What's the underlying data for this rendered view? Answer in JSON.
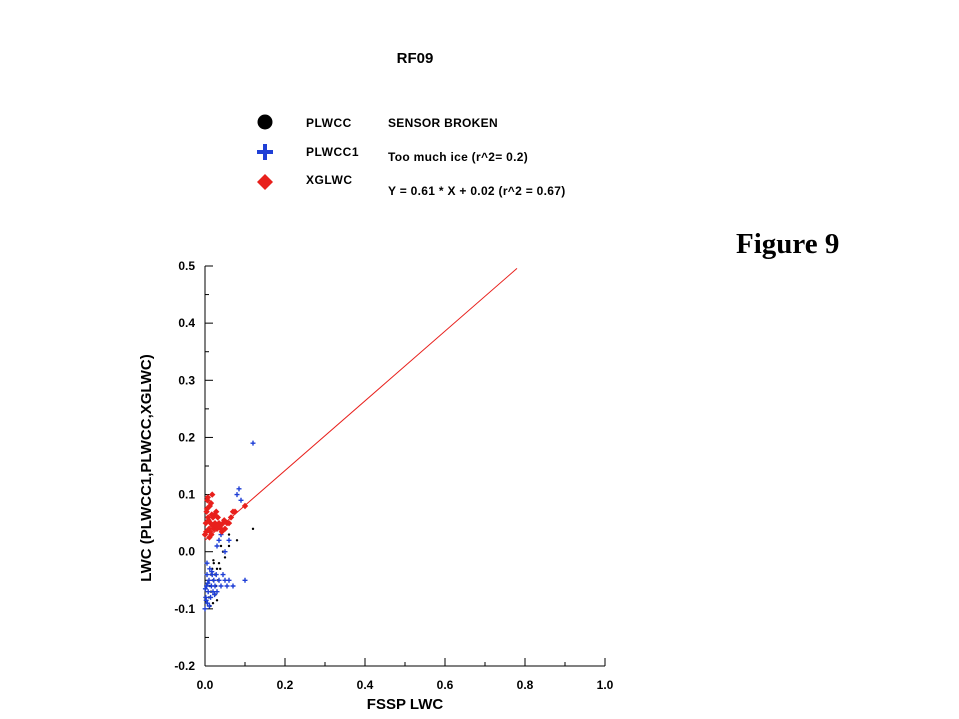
{
  "title": "RF09",
  "figure_label": "Figure 9",
  "legend": [
    {
      "name": "PLWCC",
      "note": "SENSOR BROKEN",
      "symbol": "circle",
      "color": "#000000"
    },
    {
      "name": "PLWCC1",
      "note": "Too much ice  (r^2= 0.2)",
      "symbol": "plus",
      "color": "#1f3fd6"
    },
    {
      "name": "XGLWC",
      "note": "Y = 0.61 * X + 0.02  (r^2 = 0.67)",
      "symbol": "diamond",
      "color": "#e8201c"
    }
  ],
  "chart_data": {
    "type": "scatter",
    "title": "RF09",
    "xlabel": "FSSP LWC",
    "ylabel": "LWC (PLWCC1,PLWCC,XGLWC)",
    "xlim": [
      0.0,
      1.0
    ],
    "ylim": [
      -0.2,
      0.5
    ],
    "xticks": [
      "0.0",
      "0.2",
      "0.4",
      "0.6",
      "0.8",
      "1.0"
    ],
    "yticks": [
      "-0.2",
      "-0.1",
      "0.0",
      "0.1",
      "0.2",
      "0.3",
      "0.4",
      "0.5"
    ],
    "grid": false,
    "legend_position": "top",
    "series": [
      {
        "name": "PLWCC",
        "marker": "circle",
        "color": "#000000",
        "points": [
          [
            0.01,
            -0.08
          ],
          [
            0.012,
            -0.06
          ],
          [
            0.015,
            -0.04
          ],
          [
            0.018,
            -0.03
          ],
          [
            0.02,
            -0.05
          ],
          [
            0.022,
            -0.02
          ],
          [
            0.025,
            -0.04
          ],
          [
            0.028,
            -0.06
          ],
          [
            0.03,
            -0.03
          ],
          [
            0.02,
            -0.09
          ],
          [
            0.015,
            -0.07
          ],
          [
            0.032,
            -0.05
          ],
          [
            0.035,
            -0.02
          ],
          [
            0.04,
            0.01
          ],
          [
            0.045,
            0.0
          ],
          [
            0.05,
            -0.01
          ],
          [
            0.06,
            0.01
          ],
          [
            0.08,
            0.02
          ],
          [
            0.06,
            0.03
          ],
          [
            0.12,
            0.04
          ],
          [
            0.013,
            -0.095
          ],
          [
            0.026,
            -0.075
          ],
          [
            0.021,
            -0.015
          ],
          [
            0.038,
            -0.03
          ],
          [
            0.03,
            -0.085
          ]
        ]
      },
      {
        "name": "PLWCC1",
        "marker": "plus",
        "color": "#1f3fd6",
        "points": [
          [
            0.0,
            -0.1
          ],
          [
            0.002,
            -0.08
          ],
          [
            0.004,
            -0.06
          ],
          [
            0.005,
            -0.04
          ],
          [
            0.006,
            -0.09
          ],
          [
            0.008,
            -0.07
          ],
          [
            0.01,
            -0.05
          ],
          [
            0.012,
            -0.03
          ],
          [
            0.014,
            -0.08
          ],
          [
            0.016,
            -0.06
          ],
          [
            0.018,
            -0.04
          ],
          [
            0.02,
            -0.07
          ],
          [
            0.022,
            -0.05
          ],
          [
            0.025,
            -0.06
          ],
          [
            0.028,
            -0.04
          ],
          [
            0.03,
            -0.07
          ],
          [
            0.035,
            -0.05
          ],
          [
            0.04,
            -0.06
          ],
          [
            0.045,
            -0.04
          ],
          [
            0.05,
            -0.05
          ],
          [
            0.055,
            -0.06
          ],
          [
            0.06,
            -0.05
          ],
          [
            0.07,
            -0.06
          ],
          [
            0.1,
            -0.05
          ],
          [
            0.005,
            -0.02
          ],
          [
            0.003,
            -0.085
          ],
          [
            0.007,
            -0.055
          ],
          [
            0.011,
            -0.095
          ],
          [
            0.017,
            -0.035
          ],
          [
            0.024,
            -0.075
          ],
          [
            0.03,
            0.01
          ],
          [
            0.035,
            0.02
          ],
          [
            0.04,
            0.03
          ],
          [
            0.05,
            0.0
          ],
          [
            0.06,
            0.02
          ],
          [
            0.08,
            0.1
          ],
          [
            0.085,
            0.11
          ],
          [
            0.09,
            0.09
          ],
          [
            0.12,
            0.19
          ],
          [
            0.001,
            -0.065
          ]
        ]
      },
      {
        "name": "XGLWC",
        "marker": "diamond",
        "color": "#e8201c",
        "points": [
          [
            0.0,
            0.03
          ],
          [
            0.002,
            0.05
          ],
          [
            0.004,
            0.07
          ],
          [
            0.006,
            0.09
          ],
          [
            0.008,
            0.06
          ],
          [
            0.01,
            0.04
          ],
          [
            0.012,
            0.08
          ],
          [
            0.014,
            0.05
          ],
          [
            0.016,
            0.03
          ],
          [
            0.018,
            0.1
          ],
          [
            0.02,
            0.06
          ],
          [
            0.022,
            0.04
          ],
          [
            0.025,
            0.05
          ],
          [
            0.028,
            0.07
          ],
          [
            0.03,
            0.04
          ],
          [
            0.035,
            0.05
          ],
          [
            0.04,
            0.04
          ],
          [
            0.045,
            0.05
          ],
          [
            0.05,
            0.04
          ],
          [
            0.055,
            0.05
          ],
          [
            0.06,
            0.05
          ],
          [
            0.065,
            0.06
          ],
          [
            0.07,
            0.07
          ],
          [
            0.075,
            0.07
          ],
          [
            0.1,
            0.08
          ],
          [
            0.003,
            0.035
          ],
          [
            0.007,
            0.095
          ],
          [
            0.011,
            0.025
          ],
          [
            0.015,
            0.085
          ],
          [
            0.019,
            0.045
          ],
          [
            0.024,
            0.065
          ],
          [
            0.032,
            0.06
          ],
          [
            0.038,
            0.045
          ],
          [
            0.048,
            0.055
          ],
          [
            0.005,
            0.075
          ],
          [
            0.009,
            0.055
          ],
          [
            0.013,
            0.035
          ],
          [
            0.017,
            0.065
          ],
          [
            0.027,
            0.045
          ],
          [
            0.042,
            0.035
          ]
        ]
      }
    ],
    "fit_line": {
      "series": "XGLWC",
      "slope": 0.61,
      "intercept": 0.02,
      "x_range": [
        0.0,
        0.78
      ],
      "color": "#e8201c"
    }
  }
}
